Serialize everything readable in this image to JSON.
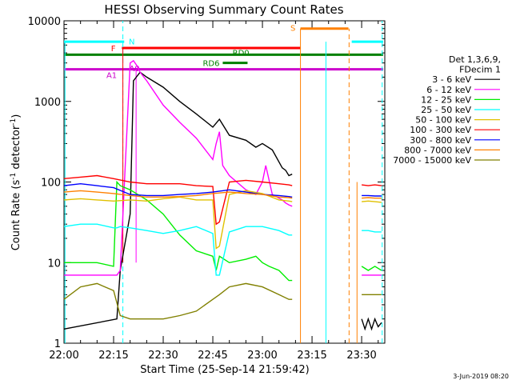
{
  "chart_data": {
    "type": "line",
    "title": "HESSI Observing Summary Count Rates",
    "xlabel": "Start Time (25-Sep-14 21:59:42)",
    "ylabel": "Count Rate (s",
    "ylabel_sup": "-1",
    "ylabel_tail": " detector",
    "ylabel_sup2": "-1",
    "ylabel_close": ")",
    "footer_date": "3-Jun-2019 08:20",
    "y_scale": "log",
    "ylim": [
      1,
      10000
    ],
    "xlim_minutes": [
      0,
      97
    ],
    "x_ticks": [
      {
        "m": 0,
        "label": "22:00"
      },
      {
        "m": 15,
        "label": "22:15"
      },
      {
        "m": 30,
        "label": "22:30"
      },
      {
        "m": 45,
        "label": "22:45"
      },
      {
        "m": 60,
        "label": "23:00"
      },
      {
        "m": 75,
        "label": "23:15"
      },
      {
        "m": 90,
        "label": "23:30"
      }
    ],
    "y_ticks": [
      {
        "v": 1,
        "label": "1"
      },
      {
        "v": 10,
        "label": "10"
      },
      {
        "v": 100,
        "label": "100"
      },
      {
        "v": 1000,
        "label": "1000"
      },
      {
        "v": 10000,
        "label": "10000"
      }
    ],
    "legend": {
      "header": [
        "Det 1,3,6,9,",
        "FDecim 1"
      ],
      "placement": "right"
    },
    "series": [
      {
        "name": "3 - 6 keV",
        "color": "#000000",
        "x": [
          0,
          16,
          17,
          20,
          21,
          23,
          25,
          30,
          35,
          40,
          45,
          47,
          50,
          55,
          58,
          60,
          63,
          66,
          67,
          68,
          69
        ],
        "y": [
          1.5,
          2,
          8,
          40,
          1800,
          2300,
          2000,
          1500,
          1000,
          700,
          480,
          600,
          380,
          330,
          270,
          300,
          250,
          150,
          140,
          120,
          125
        ]
      },
      {
        "name": "6 - 12 keV",
        "color": "#ff00ff",
        "x": [
          0,
          16,
          17,
          20,
          21,
          22,
          23,
          25,
          30,
          35,
          40,
          45,
          46,
          47,
          48,
          50,
          55,
          58,
          60,
          61,
          63,
          66,
          67,
          68,
          69
        ],
        "y": [
          7,
          7,
          8,
          3000,
          3200,
          2800,
          2300,
          1800,
          900,
          550,
          350,
          190,
          300,
          420,
          160,
          120,
          80,
          70,
          100,
          160,
          70,
          60,
          55,
          52,
          50
        ]
      },
      {
        "name": "12 - 25 keV",
        "color": "#00ee00",
        "x": [
          0,
          10,
          15,
          16,
          17,
          20,
          25,
          30,
          35,
          40,
          45,
          46,
          47,
          50,
          55,
          58,
          60,
          62,
          65,
          68,
          69
        ],
        "y": [
          10,
          10,
          9,
          100,
          90,
          80,
          60,
          40,
          22,
          14,
          12,
          8,
          12,
          10,
          11,
          12,
          10,
          9,
          8,
          6,
          6
        ]
      },
      {
        "name": "25 - 50 keV",
        "color": "#00ffff",
        "x": [
          0,
          5,
          10,
          15,
          16,
          17,
          20,
          25,
          30,
          35,
          40,
          45,
          46,
          47,
          50,
          55,
          60,
          65,
          68,
          69
        ],
        "y": [
          28,
          30,
          30,
          27,
          27,
          28,
          27,
          25,
          23,
          25,
          28,
          23,
          7,
          7,
          24,
          28,
          28,
          25,
          22,
          22
        ]
      },
      {
        "name": "50 - 100 keV",
        "color": "#e0c000",
        "x": [
          0,
          5,
          10,
          15,
          20,
          25,
          30,
          35,
          40,
          45,
          46,
          47,
          50,
          55,
          60,
          65,
          68,
          69
        ],
        "y": [
          60,
          62,
          60,
          58,
          60,
          58,
          62,
          65,
          60,
          60,
          15,
          16,
          70,
          78,
          72,
          60,
          58,
          57
        ]
      },
      {
        "name": "100 - 300 keV",
        "color": "#ff0000",
        "x": [
          0,
          5,
          10,
          15,
          20,
          25,
          30,
          35,
          40,
          45,
          46,
          47,
          50,
          55,
          60,
          65,
          68,
          69
        ],
        "y": [
          110,
          115,
          120,
          110,
          100,
          95,
          95,
          95,
          90,
          88,
          30,
          32,
          100,
          105,
          100,
          95,
          92,
          90
        ]
      },
      {
        "name": "300 - 800 keV",
        "color": "#0000ff",
        "x": [
          0,
          5,
          10,
          15,
          20,
          25,
          30,
          35,
          40,
          45,
          50,
          55,
          60,
          65,
          68,
          69
        ],
        "y": [
          90,
          95,
          90,
          85,
          70,
          68,
          68,
          70,
          72,
          75,
          80,
          75,
          70,
          68,
          66,
          65
        ]
      },
      {
        "name": "800 - 7000 keV",
        "color": "#ff8000",
        "x": [
          0,
          5,
          10,
          15,
          20,
          25,
          30,
          35,
          40,
          45,
          50,
          55,
          60,
          65,
          68,
          69
        ],
        "y": [
          75,
          78,
          75,
          72,
          68,
          65,
          65,
          66,
          68,
          72,
          75,
          72,
          70,
          65,
          64,
          63
        ]
      },
      {
        "name": "7000 - 15000 keV",
        "color": "#808000",
        "x": [
          0,
          5,
          10,
          15,
          17,
          20,
          25,
          30,
          35,
          40,
          45,
          47,
          50,
          55,
          60,
          65,
          68,
          69
        ],
        "y": [
          3.5,
          5,
          5.5,
          4.5,
          2.2,
          2,
          2,
          2,
          2.2,
          2.5,
          3.5,
          4,
          5,
          5.5,
          5,
          4,
          3.5,
          3.5
        ]
      },
      {
        "name": "3 - 6 keV (late)",
        "color": "#000000",
        "x": [
          90,
          91,
          92,
          93,
          94,
          95,
          96
        ],
        "y": [
          2,
          1.5,
          2,
          1.5,
          2,
          1.6,
          1.8
        ]
      },
      {
        "name": "6 - 12 keV (late)",
        "color": "#ff00ff",
        "x": [
          90,
          92,
          94,
          96
        ],
        "y": [
          7,
          7,
          7,
          7
        ]
      },
      {
        "name": "12 - 25 keV (late)",
        "color": "#00ee00",
        "x": [
          90,
          92,
          94,
          96
        ],
        "y": [
          9,
          8,
          9,
          8
        ]
      },
      {
        "name": "25 - 50 keV (late)",
        "color": "#00ffff",
        "x": [
          90,
          92,
          94,
          96
        ],
        "y": [
          25,
          25,
          24,
          24
        ]
      },
      {
        "name": "50 - 100 keV (late)",
        "color": "#e0c000",
        "x": [
          90,
          92,
          94,
          96
        ],
        "y": [
          57,
          58,
          57,
          56
        ]
      },
      {
        "name": "100 - 300 keV (late)",
        "color": "#ff0000",
        "x": [
          90,
          92,
          94,
          96
        ],
        "y": [
          92,
          90,
          92,
          90
        ]
      },
      {
        "name": "300 - 800 keV (late)",
        "color": "#0000ff",
        "x": [
          90,
          92,
          94,
          96
        ],
        "y": [
          68,
          68,
          67,
          67
        ]
      },
      {
        "name": "800 - 7000 keV (late)",
        "color": "#ff8000",
        "x": [
          90,
          92,
          94,
          96
        ],
        "y": [
          63,
          64,
          63,
          63
        ]
      },
      {
        "name": "7000 - 15000 keV (late)",
        "color": "#808000",
        "x": [
          90,
          92,
          94,
          96
        ],
        "y": [
          4,
          4,
          4,
          4
        ]
      }
    ],
    "flag_bars": [
      {
        "label": "N",
        "color": "#00ffff",
        "x0": 0,
        "x1": 18.2,
        "y": 5500,
        "label_m": 19.6,
        "label_y": 5600,
        "label_side": "right"
      },
      {
        "label": "",
        "color": "#00ffff",
        "x0": 87,
        "x1": 96.5,
        "y": 5500
      },
      {
        "label": "F",
        "color": "#ff0000",
        "x0": 17.5,
        "x1": 71.5,
        "y": 4600,
        "label_m": 15.6,
        "label_y": 4600,
        "label_side": "left"
      },
      {
        "label": "RD0",
        "color": "#008000",
        "x0": 0,
        "x1": 96.5,
        "y": 3800,
        "label_m": 53.5,
        "label_y": 4050,
        "label_side": "center"
      },
      {
        "label": "RD6",
        "color": "#008000",
        "x0": 48,
        "x1": 55.5,
        "y": 3000,
        "label_m": 44.5,
        "label_y": 3000,
        "label_side": "center"
      },
      {
        "label": "A1",
        "color": "#cc00cc",
        "x0": 0,
        "x1": 96.5,
        "y": 2500,
        "label_m": 16,
        "label_y": 2150,
        "label_side": "left"
      },
      {
        "label": "A0",
        "color": "#cc00cc",
        "x0": 20.5,
        "x1": 22.5,
        "y": 2500,
        "label_m": 19.7,
        "label_y": 2600,
        "label_side": "right"
      },
      {
        "label": "S",
        "color": "#ff8000",
        "x0": 71.5,
        "x1": 86,
        "y": 8000,
        "label_m": 70,
        "label_y": 8200,
        "label_side": "left"
      }
    ],
    "vertical_markers": [
      {
        "m": 0.3,
        "color": "#00ffff",
        "style": "solid",
        "from": 1,
        "to": 5500
      },
      {
        "m": 17.8,
        "color": "#00ffff",
        "style": "dashed",
        "from": 1,
        "to": 10000
      },
      {
        "m": 17.8,
        "color": "#ff0000",
        "style": "solid",
        "from": 10,
        "to": 4600
      },
      {
        "m": 21.8,
        "color": "#ff00ff",
        "style": "solid",
        "from": 10,
        "to": 2500
      },
      {
        "m": 71.5,
        "color": "#ff8000",
        "style": "solid",
        "from": 1,
        "to": 8000
      },
      {
        "m": 79.2,
        "color": "#00ffff",
        "style": "solid",
        "from": 1,
        "to": 5500
      },
      {
        "m": 86.2,
        "color": "#ff8000",
        "style": "dashed",
        "from": 1,
        "to": 8000
      },
      {
        "m": 88.6,
        "color": "#ff8000",
        "style": "solid",
        "from": 1,
        "to": 100
      },
      {
        "m": 96.2,
        "color": "#00ffff",
        "style": "dashed",
        "from": 1,
        "to": 10000
      }
    ]
  }
}
